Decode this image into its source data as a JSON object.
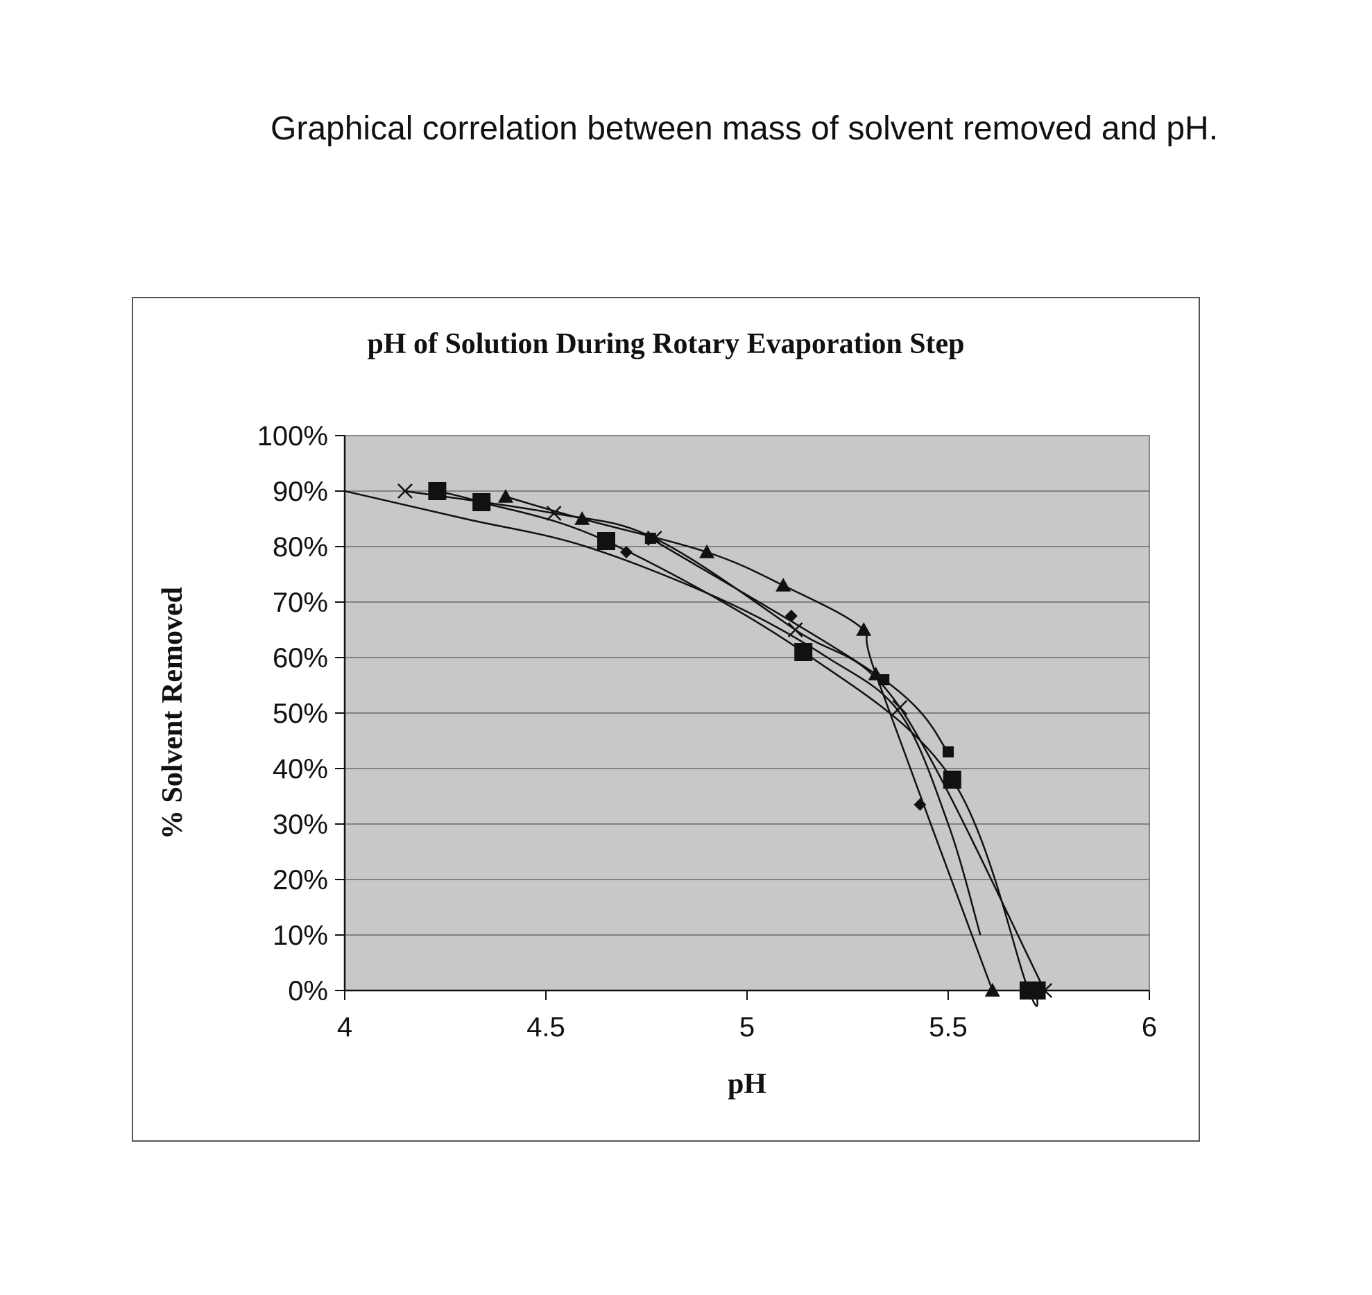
{
  "caption": "Graphical correlation between mass of solvent removed and pH.",
  "chart_data": {
    "type": "line",
    "title": "pH of Solution During Rotary Evaporation Step",
    "xlabel": "pH",
    "ylabel": "% Solvent Removed",
    "xlim": [
      4,
      6
    ],
    "ylim": [
      0,
      100
    ],
    "x_ticks": [
      4,
      4.5,
      5,
      5.5,
      6
    ],
    "x_tick_labels": [
      "4",
      "4.5",
      "5",
      "5.5",
      "6"
    ],
    "y_ticks": [
      0,
      10,
      20,
      30,
      40,
      50,
      60,
      70,
      80,
      90,
      100
    ],
    "y_tick_labels": [
      "0%",
      "10%",
      "20%",
      "30%",
      "40%",
      "50%",
      "60%",
      "70%",
      "80%",
      "90%",
      "100%"
    ],
    "grid": "horizontal",
    "legend": "none",
    "plot_background": "#c8c8c8",
    "line_color": "#111111",
    "series": [
      {
        "marker": "diamond",
        "x": [
          4.7,
          5.11,
          5.43
        ],
        "y": [
          79,
          67.5,
          33.5
        ],
        "trend_x": [
          4.0,
          4.3,
          4.6,
          4.95,
          5.2,
          5.38,
          5.5,
          5.58
        ],
        "trend_y": [
          90,
          85,
          80,
          70,
          60,
          50,
          30,
          10
        ]
      },
      {
        "marker": "small-square",
        "x": [
          4.76,
          5.34,
          5.5
        ],
        "y": [
          81.5,
          56,
          43
        ]
      },
      {
        "marker": "triangle",
        "x": [
          4.4,
          4.59,
          4.9,
          5.09,
          5.29,
          5.32,
          5.61
        ],
        "y": [
          89,
          85,
          79,
          73,
          65,
          57,
          0
        ]
      },
      {
        "marker": "x",
        "x": [
          4.15,
          4.52,
          4.77,
          5.12,
          5.38,
          5.74
        ],
        "y": [
          90,
          86,
          81.5,
          65,
          51,
          0
        ]
      },
      {
        "marker": "large-square",
        "x": [
          4.23,
          4.34,
          4.65,
          5.14,
          5.51,
          5.7,
          5.72
        ],
        "y": [
          90,
          88,
          81,
          61,
          38,
          0,
          0
        ]
      }
    ]
  }
}
